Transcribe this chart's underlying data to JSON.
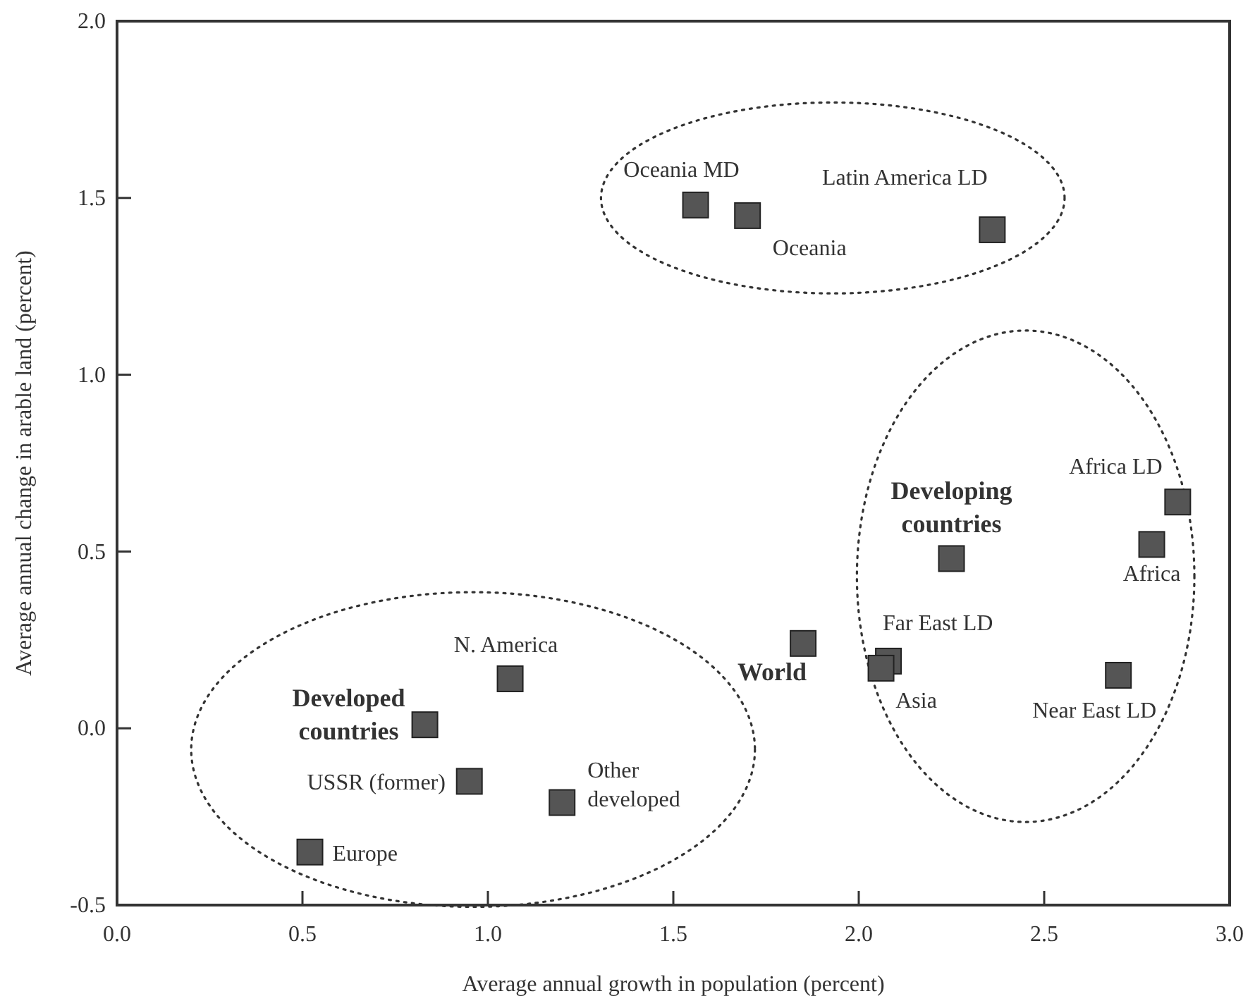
{
  "chart_data": {
    "type": "scatter",
    "xlabel": "Average annual growth in population (percent)",
    "ylabel": "Average annual change in arable land (percent)",
    "x": [
      1.56,
      1.7,
      2.36,
      2.86,
      2.79,
      2.25,
      1.85,
      2.08,
      2.06,
      2.7,
      1.06,
      0.83,
      0.95,
      1.2,
      0.52
    ],
    "values": [
      1.48,
      1.45,
      1.41,
      0.64,
      0.52,
      0.48,
      0.24,
      0.19,
      0.17,
      0.15,
      0.14,
      0.01,
      -0.15,
      -0.21,
      -0.35
    ],
    "color": "#555555",
    "marker": "square",
    "xlim": [
      0,
      3
    ],
    "xticks": [
      {
        "value": 0,
        "label": "0.0"
      },
      0.5,
      {
        "value": 1,
        "label": "1.0"
      },
      1.5,
      {
        "value": 2,
        "label": "2.0"
      },
      2.5,
      {
        "value": 3,
        "label": "3.0"
      }
    ],
    "ylim": [
      -0.5,
      2
    ],
    "yticks": [
      -0.5,
      {
        "value": 0,
        "label": "0.0"
      },
      0.5,
      {
        "value": 1,
        "label": "1.0"
      },
      1.5,
      {
        "value": 2,
        "label": "2.0"
      }
    ],
    "grid": false,
    "annotations": [
      {
        "text": "Oceania MD",
        "x": 1.56,
        "y": 1.48
      },
      {
        "text": "Oceania",
        "x": 1.7,
        "y": 1.45
      },
      {
        "text": "Latin America LD",
        "x": 2.36,
        "y": 1.41
      },
      {
        "text": "Africa LD",
        "x": 2.86,
        "y": 0.64
      },
      {
        "text": "Africa",
        "x": 2.79,
        "y": 0.52
      },
      {
        "text": "Developing countries",
        "x": 2.25,
        "y": 0.48
      },
      {
        "text": "World",
        "x": 1.85,
        "y": 0.24
      },
      {
        "text": "Far East LD",
        "x": 2.08,
        "y": 0.19
      },
      {
        "text": "Asia",
        "x": 2.06,
        "y": 0.17
      },
      {
        "text": "Near East LD",
        "x": 2.7,
        "y": 0.15
      },
      {
        "text": "N. America",
        "x": 1.06,
        "y": 0.14
      },
      {
        "text": "Developed countries",
        "x": 0.83,
        "y": 0.01
      },
      {
        "text": "USSR (former)",
        "x": 0.95,
        "y": -0.15
      },
      {
        "text": "Other developed",
        "x": 1.2,
        "y": -0.21
      },
      {
        "text": "Europe",
        "x": 0.52,
        "y": -0.35
      }
    ]
  }
}
